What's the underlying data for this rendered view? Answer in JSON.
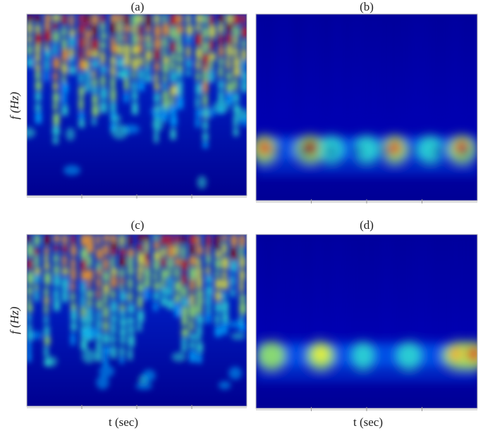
{
  "panels": [
    {
      "label": "(a)"
    },
    {
      "label": "(b)"
    },
    {
      "label": "(c)"
    },
    {
      "label": "(d)"
    }
  ],
  "rows": [
    {
      "y_label": "f (Hz)"
    },
    {
      "y_label": "f (Hz)"
    }
  ],
  "columns": [
    {
      "x_label": "t (sec)"
    },
    {
      "x_label": "t (sec)"
    }
  ]
}
